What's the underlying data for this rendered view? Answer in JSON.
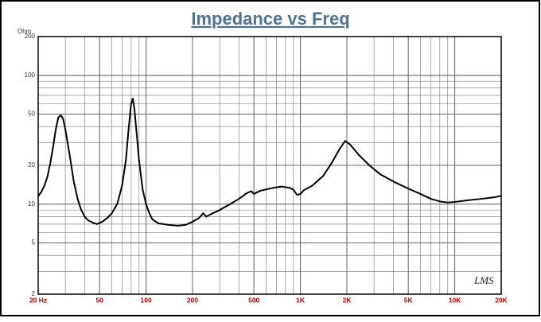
{
  "chart_data": {
    "type": "line",
    "title": "Impedance vs Freq",
    "y_unit": "Ohm",
    "annotation": "LMS",
    "xscale": "log",
    "yscale": "log",
    "grid": true,
    "minor_grid": true,
    "color": "#000000",
    "xlim": [
      20,
      20000
    ],
    "ylim": [
      2,
      200
    ],
    "xticks": [
      {
        "value": 20,
        "label": "20 Hz"
      },
      50,
      100,
      200,
      500,
      {
        "value": 1000,
        "label": "1K"
      },
      {
        "value": 2000,
        "label": "2K"
      },
      {
        "value": 5000,
        "label": "5K"
      },
      {
        "value": 10000,
        "label": "10K"
      },
      {
        "value": 20000,
        "label": "20K"
      }
    ],
    "yticks": [
      2,
      5,
      10,
      20,
      50,
      100,
      200
    ],
    "x": [
      20,
      21,
      22,
      23,
      24,
      25,
      26,
      27,
      28,
      29,
      30,
      32,
      34,
      36,
      38,
      40,
      42,
      45,
      48,
      52,
      56,
      60,
      65,
      70,
      74,
      77,
      80,
      82,
      84,
      87,
      90,
      95,
      100,
      105,
      110,
      120,
      140,
      160,
      180,
      200,
      220,
      235,
      245,
      260,
      300,
      350,
      400,
      450,
      480,
      500,
      550,
      650,
      750,
      850,
      900,
      950,
      1000,
      1050,
      1200,
      1400,
      1600,
      1800,
      1950,
      2100,
      2400,
      2800,
      3300,
      4000,
      5000,
      6000,
      7000,
      8000,
      9000,
      10000,
      12000,
      15000,
      18000,
      20000
    ],
    "values": [
      11.5,
      12.5,
      14,
      16.5,
      21,
      28,
      38,
      47,
      49,
      46,
      38,
      24,
      15,
      11,
      9,
      8,
      7.5,
      7.2,
      7.0,
      7.3,
      7.8,
      8.5,
      10,
      14,
      22,
      38,
      60,
      66,
      55,
      35,
      22,
      13,
      10,
      8.5,
      7.6,
      7.1,
      6.9,
      6.8,
      6.9,
      7.3,
      7.8,
      8.5,
      8.0,
      8.3,
      9.0,
      10.0,
      11.0,
      12.2,
      12.6,
      12.0,
      12.7,
      13.3,
      13.7,
      13.4,
      13.0,
      11.8,
      12.0,
      12.8,
      14,
      16.5,
      21,
      27,
      31,
      29,
      24,
      20,
      17,
      15,
      13.2,
      12,
      11,
      10.5,
      10.3,
      10.4,
      10.7,
      11.0,
      11.3,
      11.6
    ]
  }
}
